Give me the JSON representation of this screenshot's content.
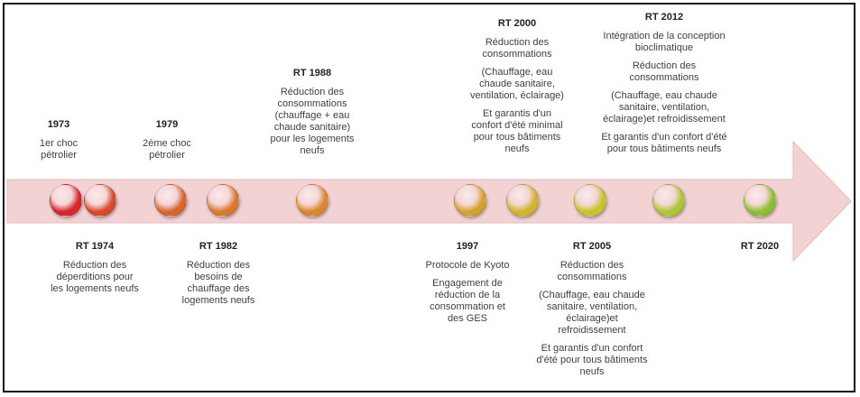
{
  "colors": {
    "arrow_fill": "#f3d2d4",
    "arrow_stroke": "#e7b9bc",
    "dots": [
      "#d8262b",
      "#d84a2c",
      "#d8652a",
      "#d97a2a",
      "#d8892e",
      "#d4a22a",
      "#d2b42b",
      "#c4c72c",
      "#aac72e",
      "#8cc02e"
    ]
  },
  "events": {
    "e1973": {
      "year": "1973",
      "lines": [
        "1er choc\npétrolier"
      ]
    },
    "e1979": {
      "year": "1979",
      "lines": [
        "2ème choc\npétrolier"
      ]
    },
    "rt1988": {
      "year": "RT 1988",
      "lines": [
        "Réduction des\nconsommations\n(chauffage + eau\nchaude sanitaire)\npour les logements\nneufs"
      ]
    },
    "rt2000": {
      "year": "RT 2000",
      "lines": [
        "Réduction des\nconsommations",
        "(Chauffage, eau\nchaude  sanitaire,\nventilation, éclairage)",
        "Et garantis d'un\nconfort d'été minimal\npour tous bâtiments\nneufs"
      ]
    },
    "rt2012": {
      "year": "RT 2012",
      "lines": [
        "Intégration de la conception\nbioclimatique",
        "Réduction des\nconsommations",
        "(Chauffage, eau chaude\nsanitaire, ventilation,\néclairage)et refroidissement",
        "Et garantis d'un confort d'été\npour tous bâtiments neufs"
      ]
    },
    "rt1974": {
      "year": "RT 1974",
      "lines": [
        "Réduction des\ndéperditions pour\nles logements neufs"
      ]
    },
    "rt1982": {
      "year": "RT 1982",
      "lines": [
        "Réduction des\nbesoins de\nchauffage des\nlogements neufs"
      ]
    },
    "e1997": {
      "year": "1997",
      "lines": [
        "Protocole de Kyoto",
        "Engagement de\nréduction  de la\nconsommation et\ndes GES"
      ]
    },
    "rt2005": {
      "year": "RT 2005",
      "lines": [
        "Réduction des\nconsommations",
        "(Chauffage, eau chaude\nsanitaire, ventilation,\néclairage)et\nrefroidissement",
        "Et garantis d'un confort\nd'été pour tous bâtiments\nneufs"
      ]
    },
    "rt2020": {
      "year": "RT 2020",
      "lines": []
    }
  }
}
